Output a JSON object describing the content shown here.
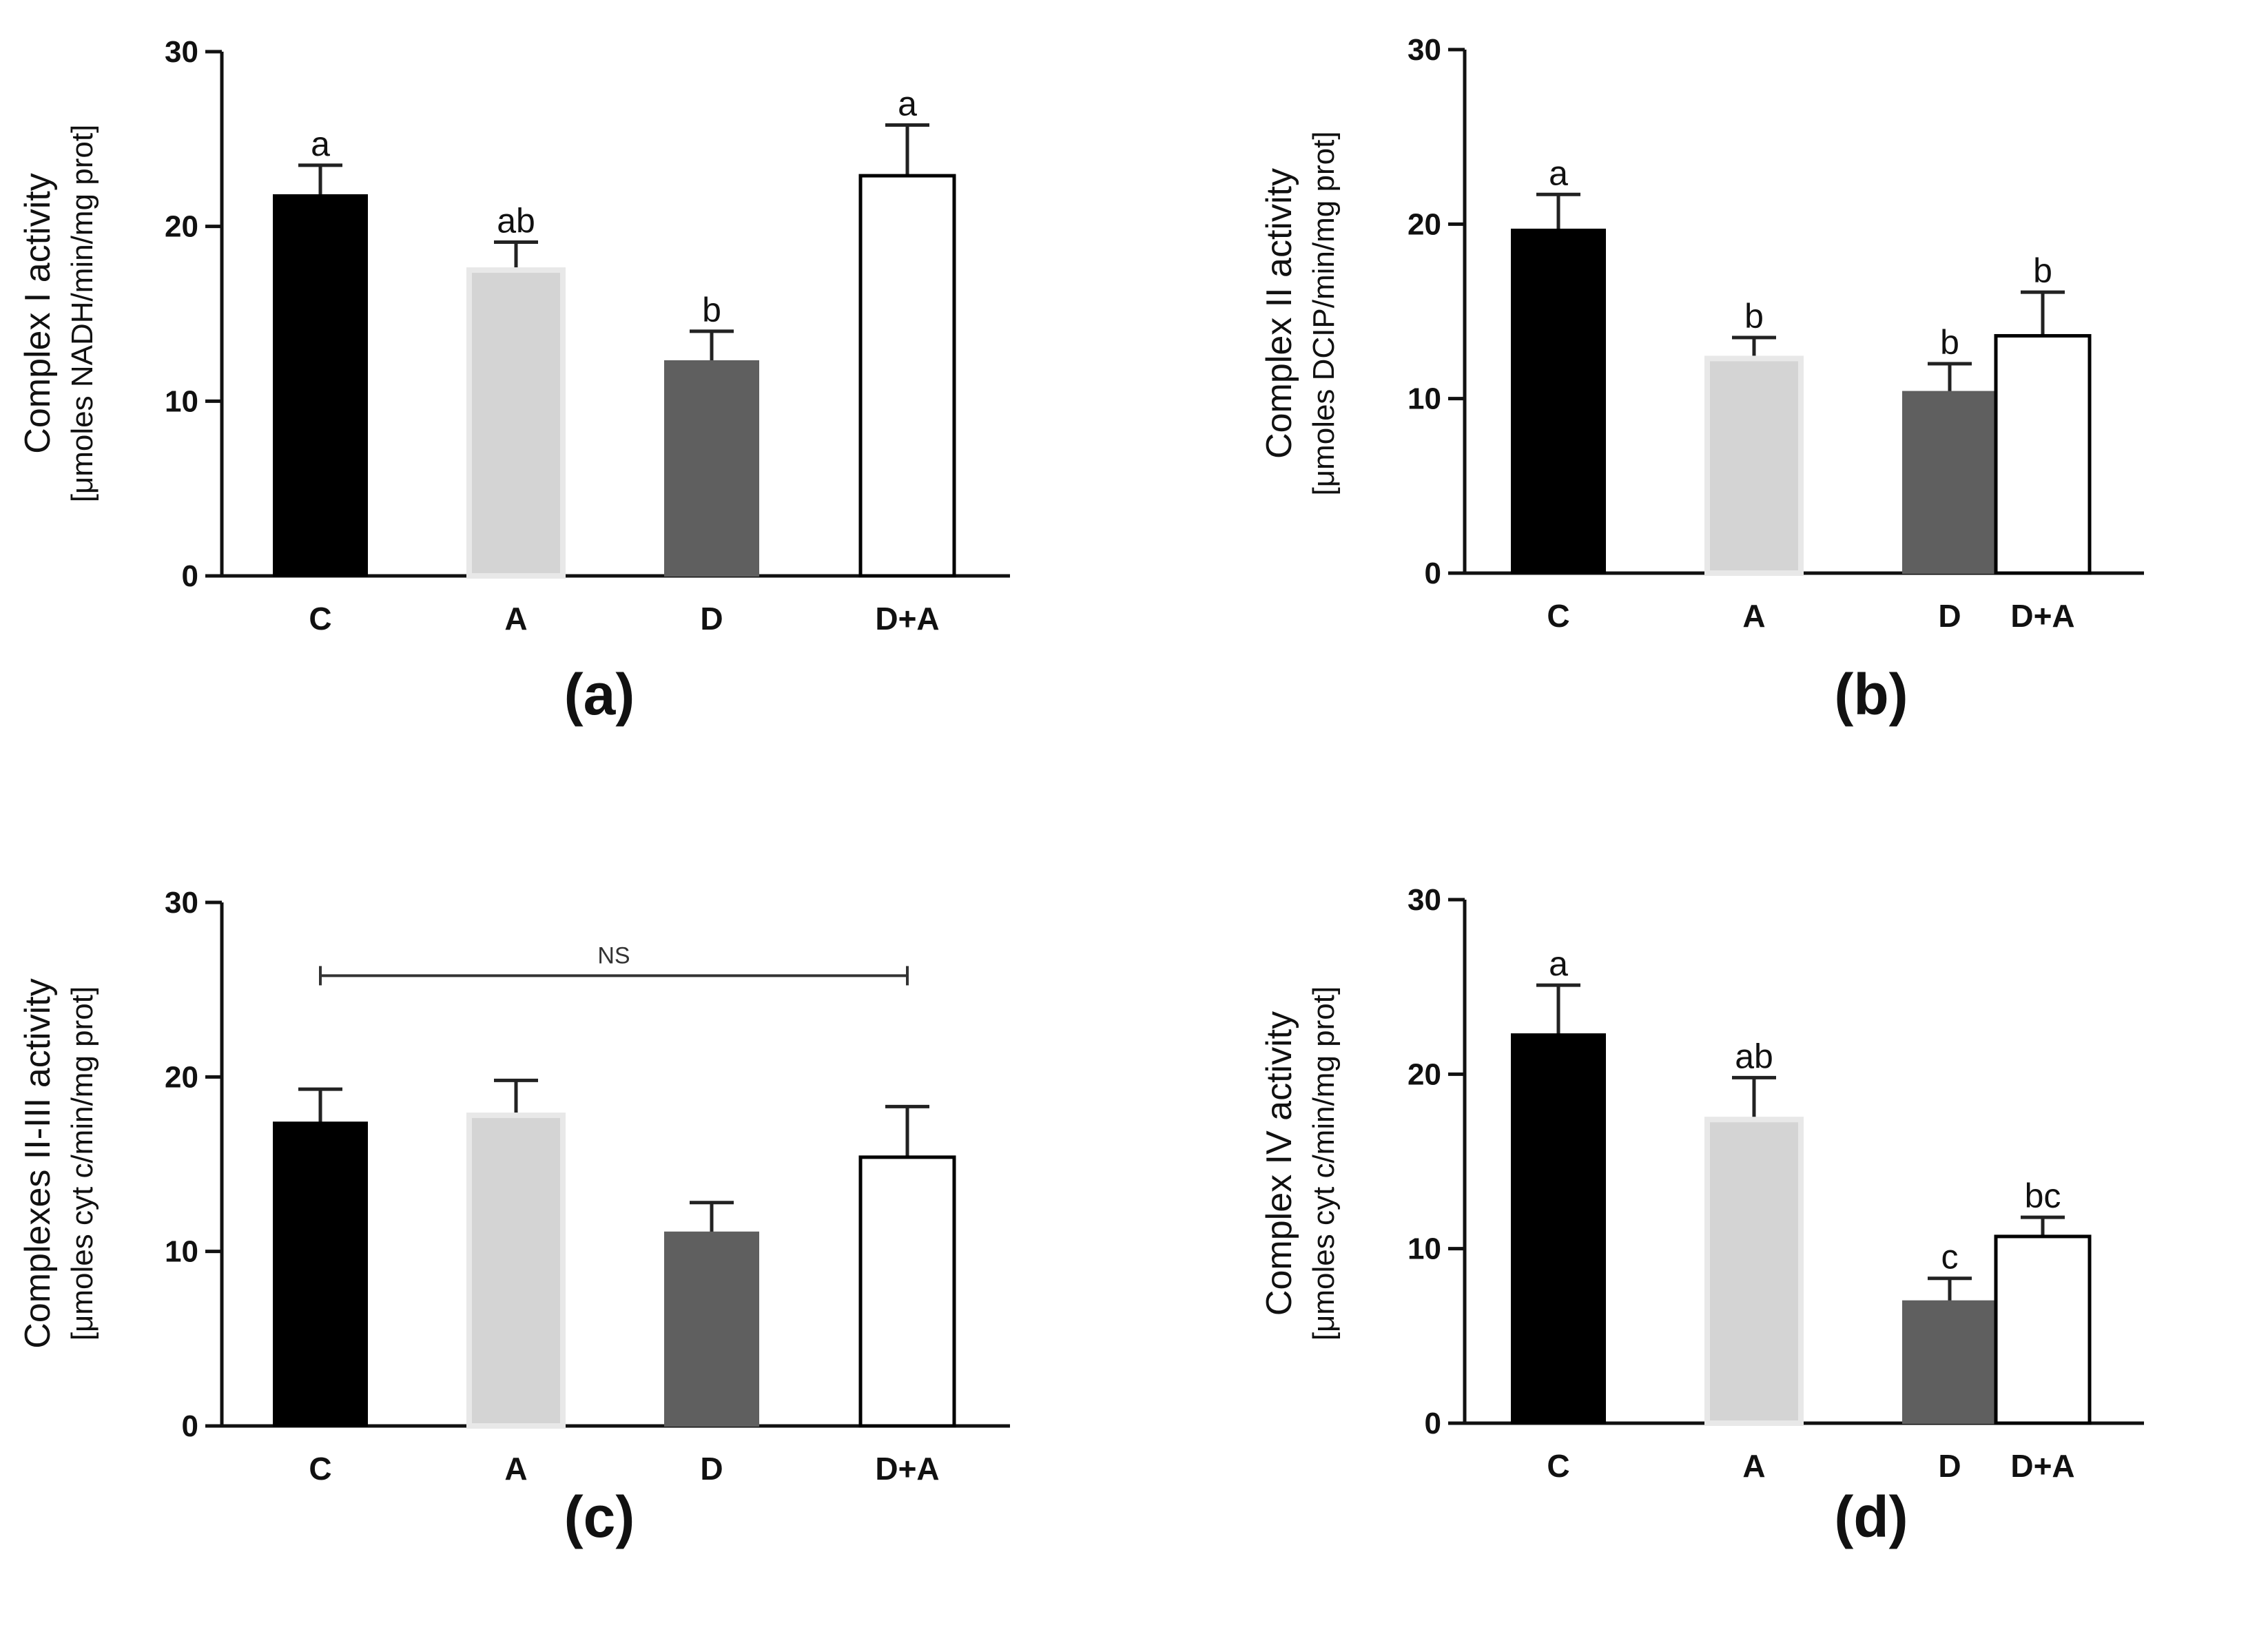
{
  "figure": {
    "panels": [
      "(a)",
      "(b)",
      "(c)",
      "(d)"
    ]
  },
  "colors": {
    "C": "#000000",
    "A": "#d4d4d4",
    "A_edge": "#e8e8e8",
    "D": "#5f5f5f",
    "D+A": "#ffffff",
    "axis": "#111111"
  },
  "chart_data": [
    {
      "panel": "(a)",
      "type": "bar",
      "title": "",
      "ylabel": "Complex I activity",
      "ylabel_sub": "[μmoles NADH/min/mg prot]",
      "xlabel": "",
      "categories": [
        "C",
        "A",
        "D",
        "D+A"
      ],
      "values": [
        21.8,
        17.5,
        12.3,
        22.9
      ],
      "errors": [
        1.7,
        1.6,
        1.7,
        2.9
      ],
      "significance": [
        "a",
        "ab",
        "b",
        "a"
      ],
      "ylim": [
        0,
        30
      ],
      "yticks": [
        0,
        10,
        20,
        30
      ],
      "bracket": null
    },
    {
      "panel": "(b)",
      "type": "bar",
      "title": "",
      "ylabel": "Complex II activity",
      "ylabel_sub": "[μmoles DCIP/min/mg prot]",
      "xlabel": "",
      "categories": [
        "C",
        "A",
        "D",
        "D+A"
      ],
      "values": [
        19.7,
        12.3,
        10.4,
        13.6
      ],
      "errors": [
        2.0,
        1.2,
        1.6,
        2.5
      ],
      "significance": [
        "a",
        "b",
        "b",
        "b"
      ],
      "ylim": [
        0,
        30
      ],
      "yticks": [
        0,
        10,
        20,
        30
      ],
      "bracket": null
    },
    {
      "panel": "(c)",
      "type": "bar",
      "title": "",
      "ylabel": "Complexes II-III activity",
      "ylabel_sub": "[μmoles cyt c/min/mg prot]",
      "xlabel": "",
      "categories": [
        "C",
        "A",
        "D",
        "D+A"
      ],
      "values": [
        17.4,
        17.8,
        11.1,
        15.4
      ],
      "errors": [
        1.9,
        2.0,
        1.7,
        2.9
      ],
      "significance": [
        "",
        "",
        "",
        ""
      ],
      "ylim": [
        0,
        30
      ],
      "yticks": [
        0,
        10,
        20,
        30
      ],
      "bracket": {
        "label": "NS",
        "from": "C",
        "to": "D+A",
        "y": 25.8
      }
    },
    {
      "panel": "(d)",
      "type": "bar",
      "title": "",
      "ylabel": "Complex IV activity",
      "ylabel_sub": "[μmoles cyt c/min/mg prot]",
      "xlabel": "",
      "categories": [
        "C",
        "A",
        "D",
        "D+A"
      ],
      "values": [
        22.3,
        17.4,
        7.0,
        10.7
      ],
      "errors": [
        2.8,
        2.4,
        1.3,
        1.1
      ],
      "significance": [
        "a",
        "ab",
        "c",
        "bc"
      ],
      "ylim": [
        0,
        30
      ],
      "yticks": [
        0,
        10,
        20,
        30
      ],
      "bracket": null
    }
  ]
}
